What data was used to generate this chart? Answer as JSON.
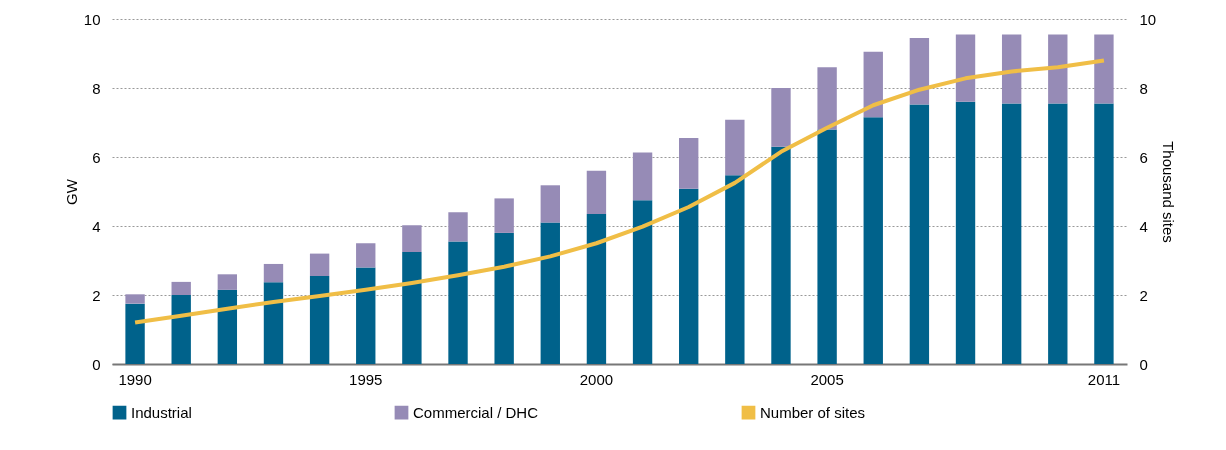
{
  "chart_data": {
    "type": "bar",
    "stacked": true,
    "categories": [
      "1990",
      null,
      null,
      null,
      null,
      "1995",
      null,
      null,
      null,
      null,
      "2000",
      null,
      null,
      null,
      null,
      "2005",
      null,
      null,
      null,
      null,
      null,
      "2011"
    ],
    "ylabel": "GW",
    "y2label": "Thousand sites",
    "ylim": [
      0,
      10
    ],
    "yticks": [
      0,
      2,
      4,
      6,
      8,
      10
    ],
    "y2lim": [
      0,
      10
    ],
    "y2ticks": [
      0,
      2,
      4,
      6,
      8,
      10
    ],
    "grid": "y",
    "legend": "bottom",
    "line_style": "solid",
    "series": [
      {
        "name": "Industrial",
        "color": "#00628b",
        "values": [
          1.75,
          2.0,
          2.15,
          2.37,
          2.55,
          2.8,
          3.25,
          3.55,
          3.8,
          4.1,
          4.35,
          4.75,
          5.08,
          5.47,
          6.3,
          6.8,
          7.15,
          7.52,
          7.6,
          7.55,
          7.55,
          7.55
        ]
      },
      {
        "name": "Commercial / DHC",
        "color": "#968bb6",
        "values": [
          0.27,
          0.38,
          0.45,
          0.53,
          0.65,
          0.7,
          0.77,
          0.85,
          1.0,
          1.08,
          1.25,
          1.38,
          1.47,
          1.61,
          1.7,
          1.8,
          1.9,
          1.93,
          1.95,
          2.0,
          2.0,
          2.0
        ]
      },
      {
        "name": "Number of sites",
        "type": "line",
        "axis": "y2",
        "color": "#f0be46",
        "values": [
          1.2,
          1.4,
          1.6,
          1.8,
          1.97,
          2.15,
          2.35,
          2.57,
          2.82,
          3.12,
          3.5,
          3.98,
          4.55,
          5.25,
          6.15,
          6.85,
          7.5,
          7.95,
          8.28,
          8.48,
          8.6,
          8.8
        ]
      }
    ]
  }
}
